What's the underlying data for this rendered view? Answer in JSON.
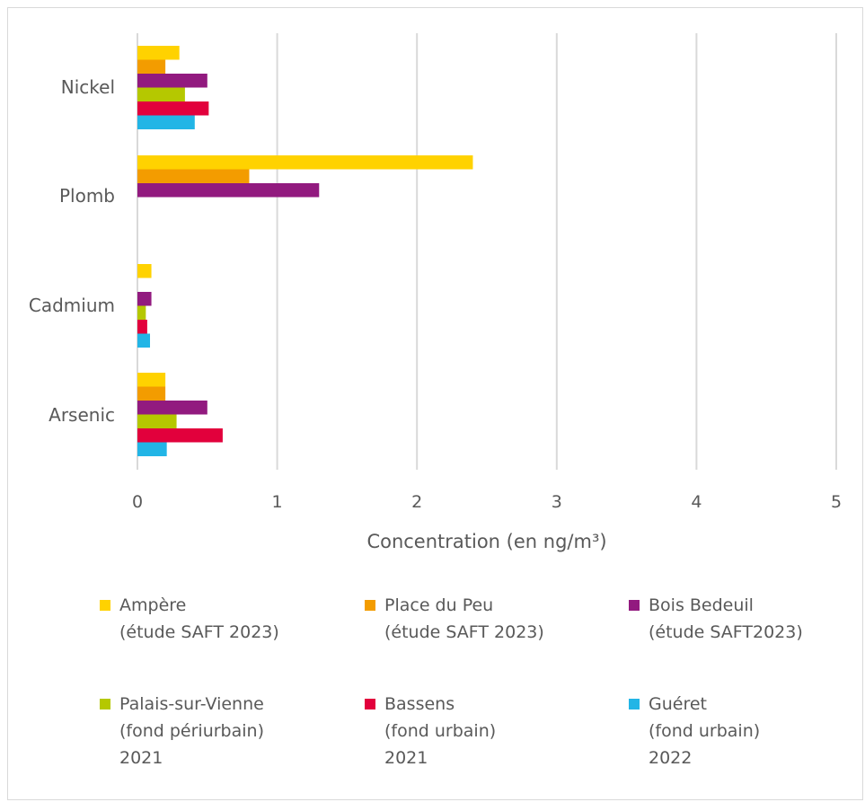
{
  "chart_data": {
    "type": "bar",
    "orientation": "horizontal",
    "categories": [
      "Nickel",
      "Plomb",
      "Cadmium",
      "Arsenic"
    ],
    "series": [
      {
        "name": [
          "Ampère",
          "(étude SAFT 2023)"
        ],
        "color": "#FFD200",
        "values": [
          0.3,
          2.4,
          0.1,
          0.2
        ]
      },
      {
        "name": [
          "Place du Peu",
          "(étude SAFT 2023)"
        ],
        "color": "#F39C00",
        "values": [
          0.2,
          0.8,
          null,
          0.2
        ]
      },
      {
        "name": [
          "Bois Bedeuil",
          "(étude SAFT2023)"
        ],
        "color": "#921A7F",
        "values": [
          0.5,
          1.3,
          0.1,
          0.5
        ]
      },
      {
        "name": [
          "Palais-sur-Vienne",
          "(fond périurbain)",
          "2021"
        ],
        "color": "#B5C800",
        "values": [
          0.34,
          null,
          0.06,
          0.28
        ]
      },
      {
        "name": [
          "Bassens",
          "(fond urbain)",
          "2021"
        ],
        "color": "#E2003C",
        "values": [
          0.51,
          null,
          0.07,
          0.61
        ]
      },
      {
        "name": [
          "Guéret",
          "(fond urbain)",
          "2022"
        ],
        "color": "#22B5E6",
        "values": [
          0.41,
          null,
          0.09,
          0.21
        ]
      }
    ],
    "xlabel": "Concentration (en ng/m³)",
    "xlim": [
      0,
      5
    ],
    "xticks": [
      "0",
      "1",
      "2",
      "3",
      "4",
      "5"
    ],
    "grid": true,
    "legend_position": "bottom"
  }
}
